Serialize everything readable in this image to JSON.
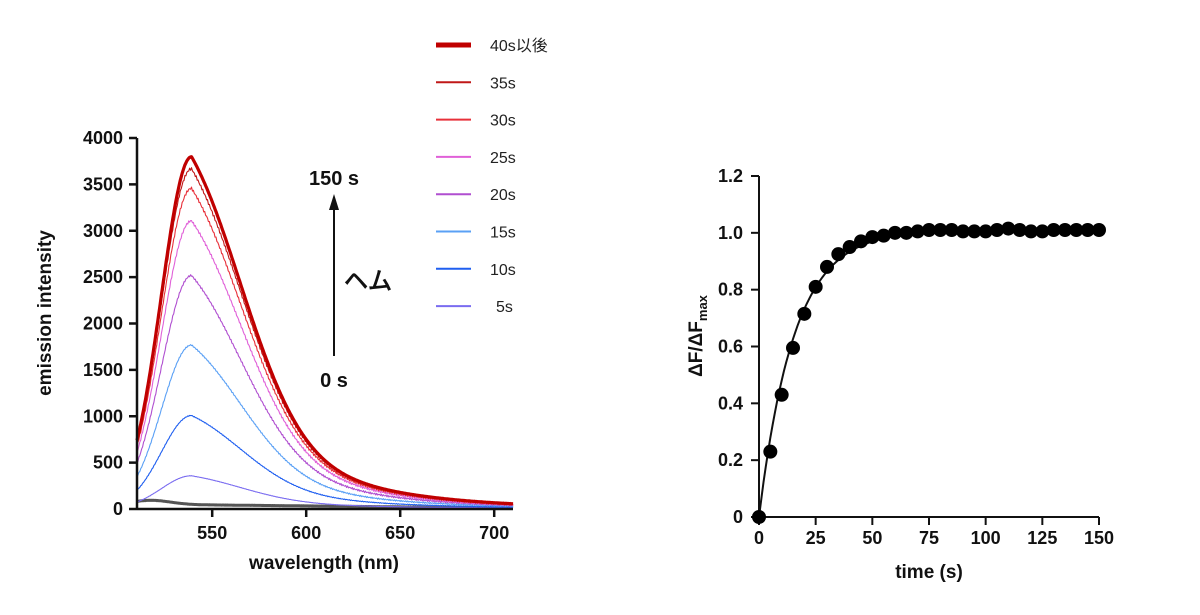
{
  "chart_data": [
    {
      "type": "line",
      "title": "",
      "xlabel": "wavelength (nm)",
      "ylabel": "emission intensity",
      "xlim": [
        510,
        710
      ],
      "ylim": [
        0,
        4000
      ],
      "xticks": [
        550,
        600,
        650,
        700
      ],
      "yticks": [
        0,
        500,
        1000,
        1500,
        2000,
        2500,
        3000,
        3500,
        4000
      ],
      "grid": false,
      "peak_wavelength_nm": 539,
      "legend_position": "top-right (outside)",
      "series": [
        {
          "name": "0s",
          "color": "#555555",
          "peak": 95,
          "in_legend": false
        },
        {
          "name": "5s",
          "color": "#7a6cf0",
          "peak": 350,
          "in_legend": true
        },
        {
          "name": "10s",
          "color": "#1f5ff0",
          "peak": 1000,
          "in_legend": true
        },
        {
          "name": "15s",
          "color": "#5aa0f5",
          "peak": 1760,
          "in_legend": true
        },
        {
          "name": "20s",
          "color": "#b04fd0",
          "peak": 2510,
          "in_legend": true
        },
        {
          "name": "25s",
          "color": "#e060d8",
          "peak": 3100,
          "in_legend": true
        },
        {
          "name": "30s",
          "color": "#e8303a",
          "peak": 3450,
          "in_legend": true
        },
        {
          "name": "35s",
          "color": "#c01818",
          "peak": 3660,
          "in_legend": true
        },
        {
          "name": "40s以後",
          "color": "#c00000",
          "peak": 3790,
          "in_legend": true,
          "thick": true
        }
      ],
      "legend_order": [
        "40s以後",
        "35s",
        "30s",
        "25s",
        "20s",
        "15s",
        "10s",
        "5s"
      ],
      "annotations": {
        "arrow_top": "150 s",
        "arrow_bottom": "0 s",
        "arrow_side": "ヘム"
      }
    },
    {
      "type": "scatter",
      "title": "",
      "xlabel": "time (s)",
      "ylabel_main": "ΔF/ΔF",
      "ylabel_sub": "max",
      "xlim": [
        0,
        150
      ],
      "ylim": [
        0,
        1.2
      ],
      "xticks": [
        0,
        25,
        50,
        75,
        100,
        125,
        150
      ],
      "yticks": [
        "0",
        "0.2",
        "0.4",
        "0.6",
        "0.8",
        "1.0",
        "1.2"
      ],
      "grid": false,
      "marker_color": "#000000",
      "fit": "single-exponential",
      "fit_tau_s": 15.5,
      "fit_plateau": 1.01,
      "x": [
        0,
        5,
        10,
        15,
        20,
        25,
        30,
        35,
        40,
        45,
        50,
        55,
        60,
        65,
        70,
        75,
        80,
        85,
        90,
        95,
        100,
        105,
        110,
        115,
        120,
        125,
        130,
        135,
        140,
        145,
        150
      ],
      "y": [
        0,
        0.23,
        0.43,
        0.595,
        0.715,
        0.81,
        0.88,
        0.925,
        0.95,
        0.97,
        0.985,
        0.99,
        1.0,
        1.0,
        1.005,
        1.01,
        1.01,
        1.01,
        1.005,
        1.005,
        1.005,
        1.01,
        1.015,
        1.01,
        1.005,
        1.005,
        1.01,
        1.01,
        1.01,
        1.01,
        1.01
      ]
    }
  ]
}
